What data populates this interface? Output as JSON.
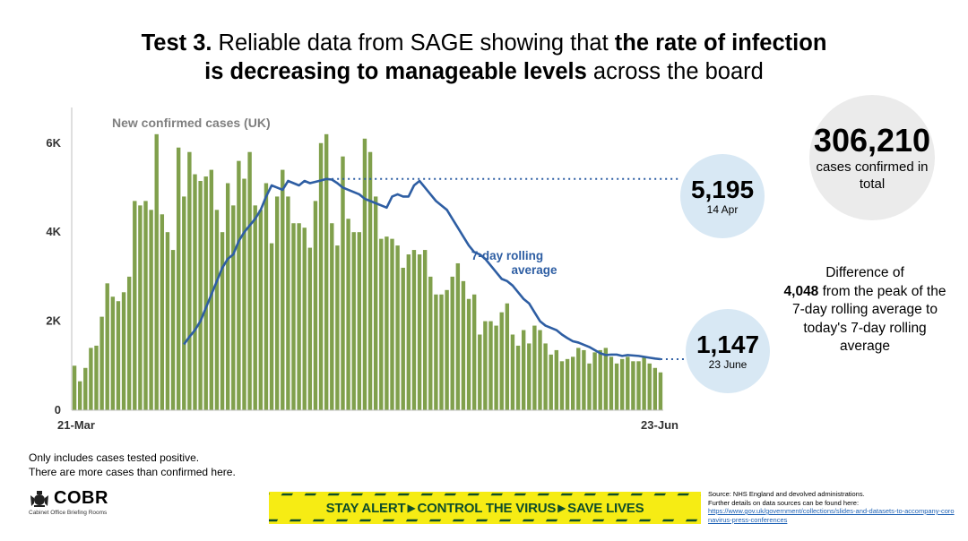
{
  "title": {
    "prefix": "Test 3.",
    "part1": " Reliable data from SAGE showing that ",
    "bold1": "the rate of infection",
    "bold2": "is decreasing to manageable levels",
    "part2": " across the board"
  },
  "total_bubble": {
    "value": "306,210",
    "label": "cases confirmed in total"
  },
  "peak_bubble": {
    "value": "5,195",
    "date": "14 Apr"
  },
  "today_bubble": {
    "value": "1,147",
    "date": "23 June"
  },
  "difference": {
    "line1": "Difference of",
    "value": "4,048",
    "line2": " from the peak of the 7-day rolling average to today's 7-day rolling average"
  },
  "note": {
    "line1": "Only includes cases tested positive.",
    "line2": "There are more cases than confirmed here."
  },
  "cobr": {
    "name": "COBR",
    "subtitle": "Cabinet Office Briefing Rooms"
  },
  "banner": {
    "part1": "STAY ALERT",
    "part2": "CONTROL THE VIRUS",
    "part3": "SAVE LIVES"
  },
  "source": {
    "line1": "Source: NHS England and devolved administrations.",
    "line2": "Further details on data sources can be found here:",
    "link": "https://www.gov.uk/government/collections/slides-and-datasets-to-accompany-coronavirus-press-conferences"
  },
  "colors": {
    "bar": "#80a04c",
    "line": "#2e5ea3",
    "banner_bg": "#f6ec14",
    "banner_text": "#0f4d2a"
  },
  "chart_data": {
    "type": "bar",
    "title": "New confirmed cases (UK)",
    "xlabel": "",
    "ylabel": "",
    "x_tick_labels": [
      "21-Mar",
      "23-Jun"
    ],
    "y_ticks": [
      0,
      2000,
      4000,
      6000
    ],
    "y_tick_labels": [
      "0",
      "2K",
      "4K",
      "6K"
    ],
    "ylim": [
      0,
      6800
    ],
    "start_date": "21-Mar",
    "end_date": "23-Jun",
    "series": [
      {
        "name": "New confirmed cases",
        "values": [
          1000,
          650,
          950,
          1400,
          1450,
          2100,
          2850,
          2550,
          2450,
          2650,
          3000,
          4700,
          4600,
          4700,
          4500,
          6200,
          4400,
          4000,
          3600,
          5900,
          4800,
          5800,
          5300,
          5150,
          5250,
          5400,
          4500,
          4000,
          5100,
          4600,
          5600,
          5200,
          5800,
          4600,
          4500,
          5100,
          3750,
          4800,
          5400,
          4800,
          4200,
          4200,
          4100,
          3650,
          4700,
          6000,
          6200,
          4200,
          3700,
          5700,
          4300,
          4000,
          4000,
          6100,
          5800,
          4800,
          3850,
          3900,
          3850,
          3700,
          3200,
          3500,
          3600,
          3500,
          3600,
          3000,
          2600,
          2600,
          2700,
          3000,
          3300,
          2900,
          2500,
          2600,
          1700,
          2000,
          2000,
          1900,
          2200,
          2400,
          1700,
          1450,
          1800,
          1500,
          1900,
          1800,
          1500,
          1250,
          1350,
          1100,
          1150,
          1200,
          1400,
          1350,
          1050,
          1300,
          1350,
          1400,
          1200,
          1050,
          1150,
          1200,
          1100,
          1100,
          1200,
          1050,
          950,
          850
        ]
      },
      {
        "name": "7-day rolling average",
        "values": [
          1480,
          1650,
          1800,
          2000,
          2300,
          2600,
          2900,
          3200,
          3400,
          3500,
          3800,
          4000,
          4150,
          4300,
          4500,
          4800,
          5050,
          5000,
          4950,
          5150,
          5100,
          5050,
          5150,
          5100,
          5130,
          5160,
          5195,
          5180,
          5100,
          5000,
          4950,
          4900,
          4850,
          4750,
          4700,
          4650,
          4600,
          4550,
          4800,
          4850,
          4800,
          4800,
          5050,
          5150,
          5000,
          4850,
          4700,
          4600,
          4500,
          4300,
          4100,
          3900,
          3700,
          3550,
          3500,
          3400,
          3250,
          3100,
          2950,
          2900,
          2800,
          2650,
          2500,
          2400,
          2200,
          2000,
          1900,
          1850,
          1800,
          1700,
          1620,
          1550,
          1520,
          1470,
          1420,
          1350,
          1280,
          1240,
          1250,
          1250,
          1220,
          1240,
          1230,
          1220,
          1200,
          1180,
          1160,
          1147
        ]
      }
    ],
    "annotations": [
      "7-day rolling average",
      "5,195 (14 Apr)",
      "1,147 (23 June)"
    ]
  }
}
